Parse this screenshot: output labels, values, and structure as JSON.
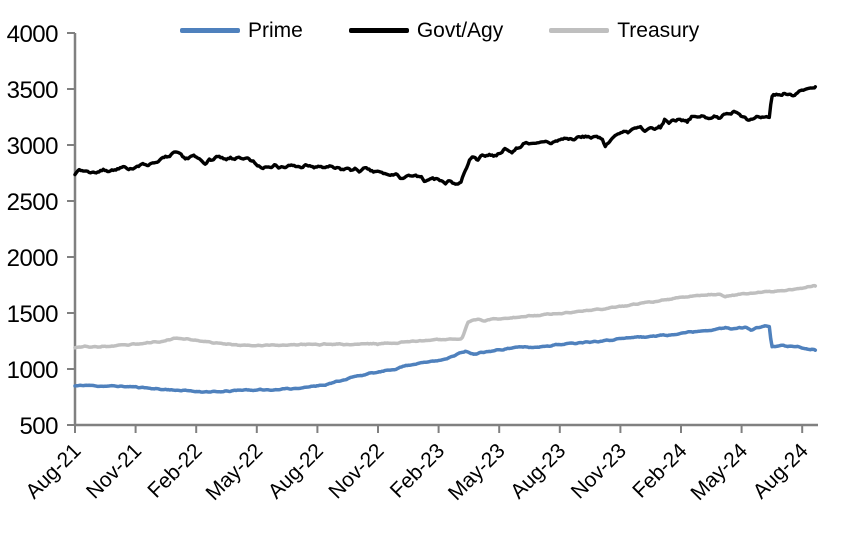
{
  "chart_data": {
    "type": "line",
    "title": "",
    "xlabel": "",
    "ylabel": "",
    "grid": false,
    "legend_position": "top",
    "axis_color": "#808080",
    "y_axis": {
      "min": 500,
      "max": 4000,
      "step": 500,
      "ticks": [
        4000,
        3500,
        3000,
        2500,
        2000,
        1500,
        1000,
        500
      ]
    },
    "x_axis": {
      "labels": [
        "Aug-21",
        "Nov-21",
        "Feb-22",
        "May-22",
        "Aug-22",
        "Nov-22",
        "Feb-23",
        "May-23",
        "Aug-23",
        "Nov-23",
        "Feb-24",
        "May-24",
        "Aug-24"
      ],
      "months_per_tick": 3,
      "label_rotation": -45
    },
    "series": [
      {
        "name": "Prime",
        "color": "#4F81BD",
        "width": 3.5,
        "noise": 8,
        "seed": 11,
        "points": [
          [
            0,
            848
          ],
          [
            0.5,
            855
          ],
          [
            1,
            850
          ],
          [
            1.5,
            846
          ],
          [
            2,
            848
          ],
          [
            2.5,
            843
          ],
          [
            3,
            840
          ],
          [
            3.5,
            833
          ],
          [
            4,
            823
          ],
          [
            4.5,
            816
          ],
          [
            5,
            812
          ],
          [
            5.5,
            806
          ],
          [
            6,
            800
          ],
          [
            6.5,
            797
          ],
          [
            7,
            795
          ],
          [
            7.5,
            800
          ],
          [
            8,
            808
          ],
          [
            8.4,
            815
          ],
          [
            8.8,
            811
          ],
          [
            9.2,
            815
          ],
          [
            9.6,
            811
          ],
          [
            10,
            817
          ],
          [
            10.5,
            821
          ],
          [
            11,
            829
          ],
          [
            11.5,
            839
          ],
          [
            12,
            851
          ],
          [
            12.4,
            861
          ],
          [
            12.8,
            879
          ],
          [
            13.2,
            899
          ],
          [
            13.6,
            920
          ],
          [
            14,
            938
          ],
          [
            14.5,
            957
          ],
          [
            15,
            971
          ],
          [
            15.5,
            987
          ],
          [
            16,
            1007
          ],
          [
            16.3,
            1028
          ],
          [
            16.6,
            1038
          ],
          [
            17,
            1050
          ],
          [
            17.5,
            1064
          ],
          [
            18,
            1079
          ],
          [
            18.4,
            1094
          ],
          [
            18.8,
            1118
          ],
          [
            19.1,
            1148
          ],
          [
            19.35,
            1160
          ],
          [
            19.6,
            1136
          ],
          [
            19.85,
            1130
          ],
          [
            20.1,
            1146
          ],
          [
            20.4,
            1155
          ],
          [
            20.7,
            1162
          ],
          [
            21,
            1171
          ],
          [
            21.3,
            1180
          ],
          [
            21.6,
            1187
          ],
          [
            22,
            1194
          ],
          [
            22.3,
            1199
          ],
          [
            22.6,
            1191
          ],
          [
            23,
            1199
          ],
          [
            23.4,
            1207
          ],
          [
            23.8,
            1216
          ],
          [
            24.2,
            1222
          ],
          [
            24.6,
            1229
          ],
          [
            25,
            1237
          ],
          [
            25.5,
            1244
          ],
          [
            26,
            1251
          ],
          [
            26.5,
            1259
          ],
          [
            27,
            1271
          ],
          [
            27.5,
            1279
          ],
          [
            28,
            1289
          ],
          [
            28.3,
            1284
          ],
          [
            28.7,
            1296
          ],
          [
            29,
            1304
          ],
          [
            29.3,
            1297
          ],
          [
            29.7,
            1313
          ],
          [
            30,
            1321
          ],
          [
            30.5,
            1331
          ],
          [
            31,
            1341
          ],
          [
            31.5,
            1351
          ],
          [
            32,
            1361
          ],
          [
            32.2,
            1368
          ],
          [
            32.5,
            1358
          ],
          [
            33,
            1370
          ],
          [
            33.2,
            1378
          ],
          [
            33.45,
            1344
          ],
          [
            33.7,
            1362
          ],
          [
            34,
            1380
          ],
          [
            34.38,
            1383
          ],
          [
            34.48,
            1196
          ],
          [
            34.7,
            1203
          ],
          [
            35,
            1210
          ],
          [
            35.3,
            1202
          ],
          [
            35.6,
            1206
          ],
          [
            36,
            1188
          ],
          [
            36.3,
            1177
          ],
          [
            36.65,
            1175
          ]
        ]
      },
      {
        "name": "Govt/Agy",
        "color": "#000000",
        "width": 3.4,
        "noise": 26,
        "seed": 7,
        "points": [
          [
            0,
            2760
          ],
          [
            0.4,
            2775
          ],
          [
            0.8,
            2756
          ],
          [
            1.2,
            2766
          ],
          [
            1.6,
            2780
          ],
          [
            2,
            2774
          ],
          [
            2.4,
            2790
          ],
          [
            2.8,
            2800
          ],
          [
            3.2,
            2814
          ],
          [
            3.6,
            2830
          ],
          [
            4,
            2850
          ],
          [
            4.5,
            2886
          ],
          [
            5,
            2924
          ],
          [
            5.3,
            2900
          ],
          [
            5.6,
            2876
          ],
          [
            5.9,
            2896
          ],
          [
            6.2,
            2866
          ],
          [
            6.5,
            2846
          ],
          [
            6.8,
            2870
          ],
          [
            7.1,
            2890
          ],
          [
            7.4,
            2862
          ],
          [
            7.7,
            2880
          ],
          [
            8,
            2886
          ],
          [
            8.3,
            2860
          ],
          [
            8.6,
            2876
          ],
          [
            9,
            2820
          ],
          [
            9.3,
            2800
          ],
          [
            9.6,
            2824
          ],
          [
            10,
            2812
          ],
          [
            10.4,
            2798
          ],
          [
            10.8,
            2814
          ],
          [
            11.2,
            2804
          ],
          [
            11.6,
            2812
          ],
          [
            12,
            2798
          ],
          [
            12.4,
            2804
          ],
          [
            12.8,
            2792
          ],
          [
            13.2,
            2782
          ],
          [
            13.6,
            2788
          ],
          [
            14,
            2772
          ],
          [
            14.4,
            2780
          ],
          [
            14.8,
            2762
          ],
          [
            15.2,
            2748
          ],
          [
            15.6,
            2732
          ],
          [
            16,
            2726
          ],
          [
            16.3,
            2702
          ],
          [
            16.6,
            2722
          ],
          [
            17,
            2712
          ],
          [
            17.3,
            2682
          ],
          [
            17.6,
            2706
          ],
          [
            18,
            2692
          ],
          [
            18.3,
            2668
          ],
          [
            18.6,
            2678
          ],
          [
            18.9,
            2652
          ],
          [
            19.1,
            2668
          ],
          [
            19.3,
            2762
          ],
          [
            19.5,
            2856
          ],
          [
            19.7,
            2890
          ],
          [
            19.9,
            2876
          ],
          [
            20.1,
            2900
          ],
          [
            20.4,
            2916
          ],
          [
            20.7,
            2906
          ],
          [
            21,
            2930
          ],
          [
            21.3,
            2956
          ],
          [
            21.6,
            2940
          ],
          [
            22,
            2976
          ],
          [
            22.2,
            3016
          ],
          [
            22.4,
            3030
          ],
          [
            22.7,
            2996
          ],
          [
            23,
            3010
          ],
          [
            23.3,
            3036
          ],
          [
            23.6,
            3016
          ],
          [
            24,
            3046
          ],
          [
            24.3,
            3062
          ],
          [
            24.6,
            3048
          ],
          [
            25,
            3066
          ],
          [
            25.4,
            3078
          ],
          [
            25.8,
            3060
          ],
          [
            26.1,
            3070
          ],
          [
            26.25,
            2986
          ],
          [
            26.45,
            3040
          ],
          [
            26.7,
            3076
          ],
          [
            27,
            3106
          ],
          [
            27.2,
            3136
          ],
          [
            27.4,
            3112
          ],
          [
            27.7,
            3140
          ],
          [
            28,
            3156
          ],
          [
            28.2,
            3112
          ],
          [
            28.5,
            3140
          ],
          [
            29,
            3160
          ],
          [
            29.2,
            3222
          ],
          [
            29.4,
            3206
          ],
          [
            29.7,
            3226
          ],
          [
            30,
            3236
          ],
          [
            30.3,
            3216
          ],
          [
            30.6,
            3246
          ],
          [
            31,
            3256
          ],
          [
            31.3,
            3236
          ],
          [
            31.6,
            3262
          ],
          [
            32,
            3250
          ],
          [
            32.3,
            3272
          ],
          [
            32.6,
            3310
          ],
          [
            32.9,
            3286
          ],
          [
            33.2,
            3246
          ],
          [
            33.5,
            3216
          ],
          [
            33.8,
            3240
          ],
          [
            34.1,
            3230
          ],
          [
            34.38,
            3250
          ],
          [
            34.48,
            3432
          ],
          [
            34.7,
            3456
          ],
          [
            35,
            3446
          ],
          [
            35.3,
            3462
          ],
          [
            35.6,
            3456
          ],
          [
            36,
            3476
          ],
          [
            36.3,
            3490
          ],
          [
            36.65,
            3502
          ]
        ]
      },
      {
        "name": "Treasury",
        "color": "#BFBFBF",
        "width": 3.5,
        "noise": 8,
        "seed": 23,
        "points": [
          [
            0,
            1196
          ],
          [
            0.5,
            1201
          ],
          [
            1,
            1196
          ],
          [
            1.5,
            1201
          ],
          [
            2,
            1206
          ],
          [
            2.5,
            1214
          ],
          [
            3,
            1220
          ],
          [
            3.5,
            1230
          ],
          [
            4,
            1244
          ],
          [
            4.5,
            1252
          ],
          [
            5,
            1280
          ],
          [
            5.2,
            1266
          ],
          [
            5.5,
            1272
          ],
          [
            6,
            1256
          ],
          [
            6.5,
            1241
          ],
          [
            7,
            1231
          ],
          [
            7.5,
            1222
          ],
          [
            8,
            1218
          ],
          [
            8.5,
            1212
          ],
          [
            9,
            1210
          ],
          [
            9.5,
            1215
          ],
          [
            10,
            1211
          ],
          [
            10.5,
            1217
          ],
          [
            11,
            1214
          ],
          [
            11.5,
            1221
          ],
          [
            12,
            1218
          ],
          [
            12.5,
            1222
          ],
          [
            13,
            1224
          ],
          [
            13.5,
            1218
          ],
          [
            14,
            1222
          ],
          [
            14.5,
            1227
          ],
          [
            15,
            1224
          ],
          [
            15.5,
            1230
          ],
          [
            16,
            1236
          ],
          [
            16.5,
            1242
          ],
          [
            17,
            1250
          ],
          [
            17.5,
            1257
          ],
          [
            18,
            1262
          ],
          [
            18.5,
            1267
          ],
          [
            19,
            1270
          ],
          [
            19.15,
            1272
          ],
          [
            19.45,
            1415
          ],
          [
            19.7,
            1438
          ],
          [
            20,
            1444
          ],
          [
            20.3,
            1430
          ],
          [
            20.6,
            1444
          ],
          [
            21,
            1450
          ],
          [
            21.5,
            1456
          ],
          [
            22,
            1464
          ],
          [
            22.5,
            1474
          ],
          [
            23,
            1480
          ],
          [
            23.5,
            1489
          ],
          [
            24,
            1495
          ],
          [
            24.5,
            1505
          ],
          [
            25,
            1514
          ],
          [
            25.5,
            1524
          ],
          [
            26,
            1534
          ],
          [
            26.5,
            1547
          ],
          [
            27,
            1559
          ],
          [
            27.5,
            1571
          ],
          [
            28,
            1584
          ],
          [
            28.5,
            1597
          ],
          [
            29,
            1609
          ],
          [
            29.5,
            1624
          ],
          [
            30,
            1639
          ],
          [
            30.5,
            1651
          ],
          [
            31,
            1659
          ],
          [
            31.5,
            1664
          ],
          [
            32,
            1669
          ],
          [
            32.2,
            1645
          ],
          [
            32.5,
            1655
          ],
          [
            33,
            1667
          ],
          [
            33.5,
            1677
          ],
          [
            34,
            1687
          ],
          [
            34.5,
            1694
          ],
          [
            35,
            1700
          ],
          [
            35.5,
            1710
          ],
          [
            36,
            1724
          ],
          [
            36.4,
            1738
          ],
          [
            36.65,
            1744
          ]
        ]
      }
    ]
  }
}
